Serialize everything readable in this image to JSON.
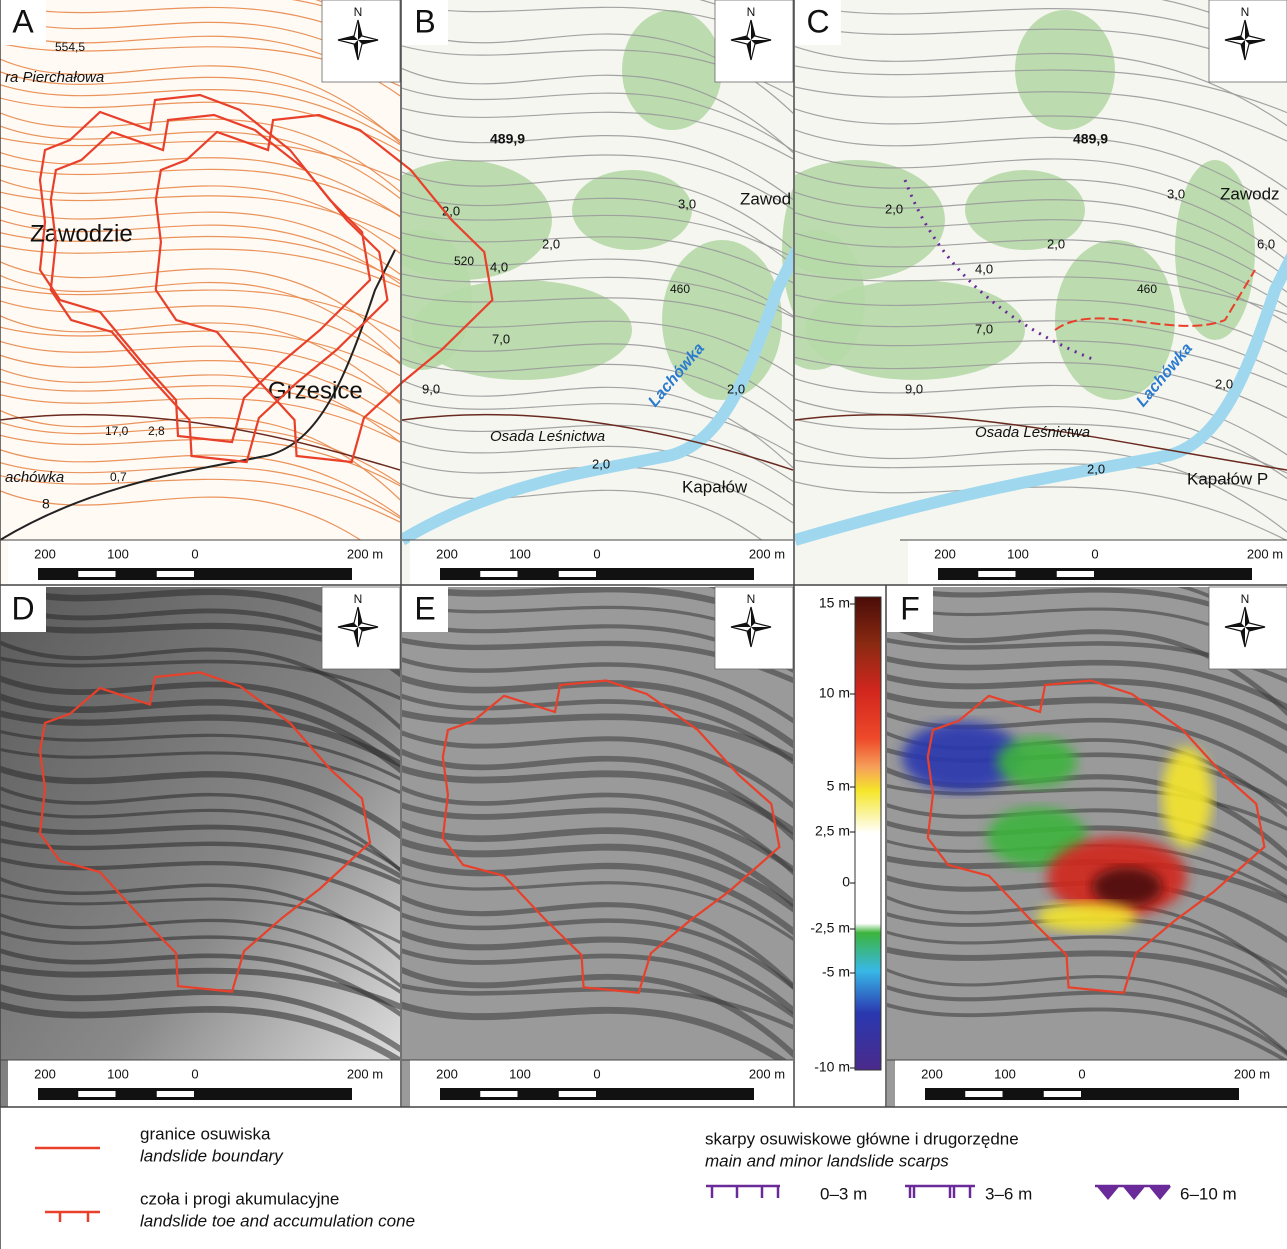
{
  "panels": [
    {
      "letter": "A",
      "north": "N",
      "scale": [
        "200",
        "100",
        "0",
        "200 m"
      ],
      "labels": [
        "554,5",
        "ra Pierchałowa",
        "Zawodzie",
        "Grzesice",
        "17,0",
        "2,8",
        "achówka",
        "0,7",
        "8"
      ]
    },
    {
      "letter": "B",
      "north": "N",
      "scale": [
        "200",
        "100",
        "0",
        "200 m"
      ],
      "labels": [
        "489,9",
        "3,0",
        "Zawod",
        "2,0",
        "520",
        "4,0",
        "2,0",
        "460",
        "7,0",
        "9,0",
        "Osada Leśnictwa",
        "Lachówka",
        "2,0",
        "2,0",
        "Kapałów"
      ]
    },
    {
      "letter": "C",
      "north": "N",
      "scale": [
        "200",
        "100",
        "0",
        "200 m"
      ],
      "labels": [
        "489,9",
        "3,0",
        "Zawodz",
        "2,0",
        "4,0",
        "2,0",
        "460",
        "7,0",
        "9,0",
        "Osada Leśnictwa",
        "Lachówka",
        "2,0",
        "2,0",
        "Kapałów P",
        "6,0"
      ]
    },
    {
      "letter": "D",
      "north": "N",
      "scale": [
        "200",
        "100",
        "0",
        "200 m"
      ],
      "labels": []
    },
    {
      "letter": "E",
      "north": "N",
      "scale": [
        "200",
        "100",
        "0",
        "200 m"
      ],
      "labels": []
    },
    {
      "letter": "F",
      "north": "N",
      "scale": [
        "200",
        "100",
        "0",
        "200 m"
      ],
      "labels": []
    }
  ],
  "colorbar": [
    "15 m",
    "10 m",
    "5 m",
    "2,5 m",
    "0",
    "-2,5 m",
    "-5 m",
    "-10 m"
  ],
  "legend": {
    "boundary": {
      "pl": "granice osuwiska",
      "en": "landslide boundary"
    },
    "toe": {
      "pl": "czoła i progi akumulacyjne",
      "en": "landslide toe and accumulation cone"
    },
    "scarps": {
      "pl": "skarpy osuwiskowe główne i drugorzędne",
      "en": "main and minor landslide scarps",
      "classes": [
        "0–3 m",
        "3–6 m",
        "6–10 m"
      ]
    }
  }
}
